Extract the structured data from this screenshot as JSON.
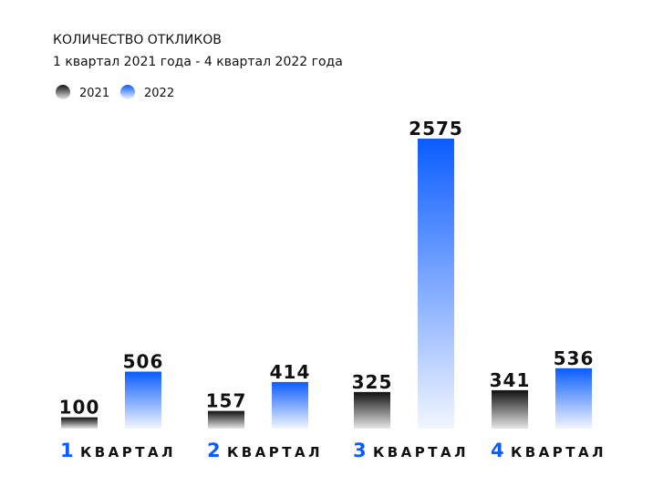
{
  "chart_data": {
    "type": "bar",
    "title": "КОЛИЧЕСТВО ОТКЛИКОВ",
    "subtitle": "1 квартал  2021 года - 4 квартал 2022 года",
    "categories": [
      "1 КВАРТАЛ",
      "2 КВАРТАЛ",
      "3 КВАРТАЛ",
      "4 КВАРТАЛ"
    ],
    "series": [
      {
        "name": "2021",
        "color": "#111111",
        "values": [
          100,
          157,
          325,
          341
        ]
      },
      {
        "name": "2022",
        "color": "#0a5cff",
        "values": [
          506,
          414,
          2575,
          536
        ]
      }
    ]
  }
}
